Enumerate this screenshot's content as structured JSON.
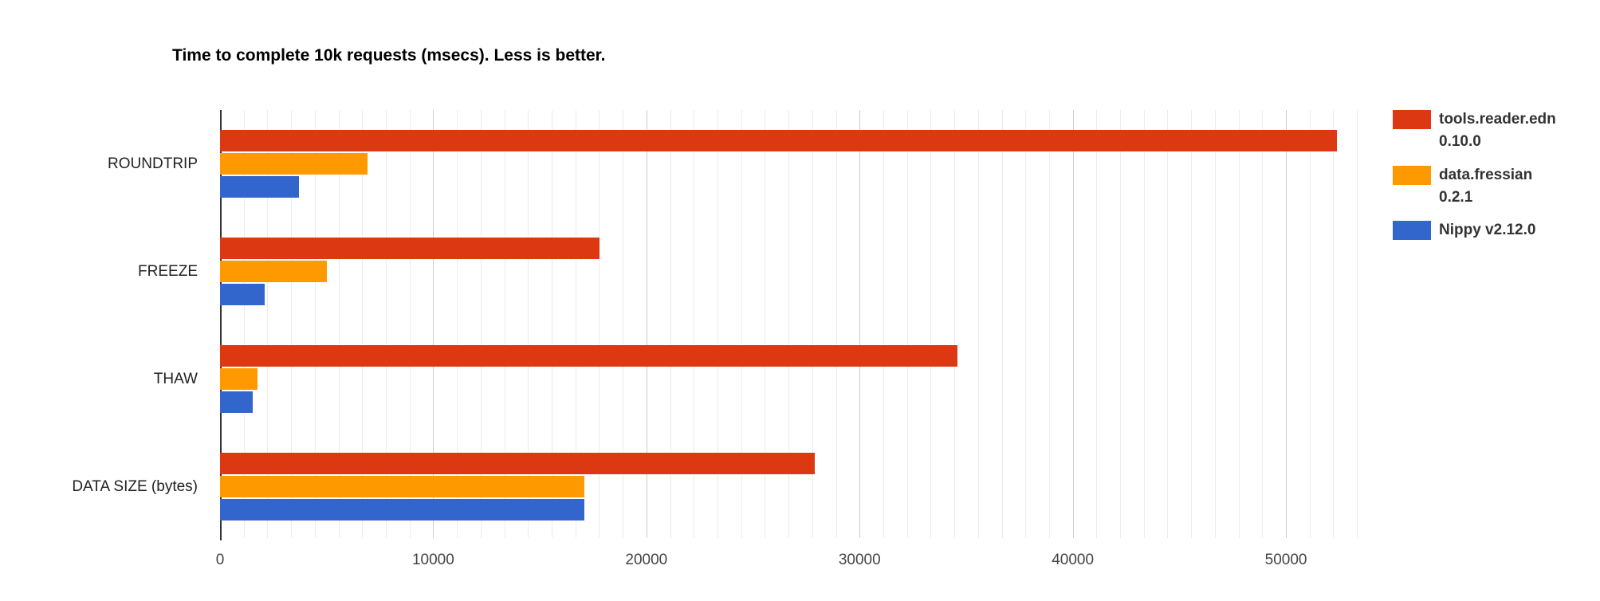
{
  "chart_data": {
    "type": "bar",
    "orientation": "horizontal",
    "title": "Time to complete 10k requests (msecs). Less is better.",
    "categories": [
      "ROUNDTRIP",
      "FREEZE",
      "THAW",
      "DATA SIZE (bytes)"
    ],
    "series": [
      {
        "name": "tools.reader.edn 0.10.0",
        "legend_lines": [
          "tools.reader.edn",
          "0.10.0"
        ],
        "color": "#dc3912",
        "values": [
          52400,
          17800,
          34600,
          27900
        ]
      },
      {
        "name": "data.fressian 0.2.1",
        "legend_lines": [
          "data.fressian",
          "0.2.1"
        ],
        "color": "#ff9900",
        "values": [
          6900,
          5000,
          1750,
          17100
        ]
      },
      {
        "name": "Nippy v2.12.0",
        "legend_lines": [
          "Nippy v2.12.0"
        ],
        "color": "#3366cc",
        "values": [
          3700,
          2100,
          1550,
          17100
        ]
      }
    ],
    "xlim": [
      0,
      53700
    ],
    "x_tick_values": [
      0,
      10000,
      20000,
      30000,
      40000,
      50000
    ],
    "x_tick_labels": [
      "0",
      "10000",
      "20000",
      "30000",
      "40000",
      "50000"
    ],
    "xlabel": "",
    "ylabel": "",
    "legend_position": "right",
    "grid": {
      "show": true,
      "major_step": 10000,
      "minor_divisions": 9,
      "minor_color": "#ececec",
      "major_color": "#cccccc",
      "baseline_color": "#333333"
    }
  }
}
